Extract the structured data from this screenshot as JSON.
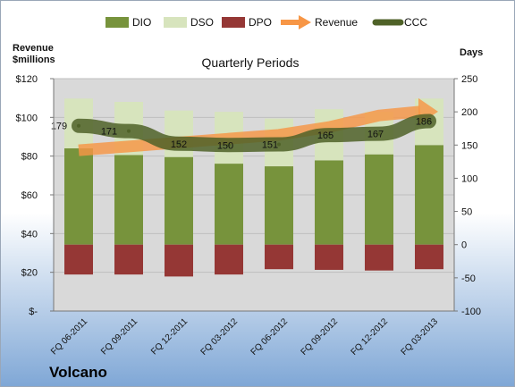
{
  "colors": {
    "dio": "#77933c",
    "dso": "#d7e4bd",
    "dpo": "#953735",
    "revenue": "#f79646",
    "ccc": "#4f6228",
    "plot_bg": "#d9d9d9",
    "bg_top": "#ffffff",
    "bg_bottom": "#7fa7d6"
  },
  "chart_data": {
    "type": "bar",
    "title": "Quarterly Periods",
    "company": "Volcano",
    "left_axis": {
      "label_line1": "Revenue",
      "label_line2": "$millions",
      "range": [
        0,
        120
      ],
      "ticks": [
        0,
        20,
        40,
        60,
        80,
        100,
        120
      ],
      "tick_labels": [
        "$-",
        "$20",
        "$40",
        "$60",
        "$80",
        "$100",
        "$120"
      ]
    },
    "right_axis": {
      "label": "Days",
      "range": [
        -100,
        250
      ],
      "ticks": [
        -100,
        -50,
        0,
        50,
        100,
        150,
        200,
        250
      ],
      "tick_labels": [
        "-100",
        "-50",
        "0",
        "50",
        "100",
        "150",
        "200",
        "250"
      ]
    },
    "grid": true,
    "legend_position": "top",
    "legend": [
      {
        "key": "dio",
        "label": "DIO",
        "marker": "bar"
      },
      {
        "key": "dso",
        "label": "DSO",
        "marker": "bar"
      },
      {
        "key": "dpo",
        "label": "DPO",
        "marker": "bar"
      },
      {
        "key": "revenue",
        "label": "Revenue",
        "marker": "arrow"
      },
      {
        "key": "ccc",
        "label": "CCC",
        "marker": "line"
      }
    ],
    "categories": [
      "FQ 06-2011",
      "FQ 09-2011",
      "FQ 12-2011",
      "FQ 03-2012",
      "FQ 06-2012",
      "FQ 09-2012",
      "FQ 12-2012",
      "FQ 03-2013"
    ],
    "series": [
      {
        "key": "dio",
        "name": "DIO",
        "axis": "right",
        "values": [
          145,
          135,
          132,
          122,
          118,
          127,
          136,
          150
        ]
      },
      {
        "key": "dso",
        "name": "DSO",
        "axis": "right",
        "values": [
          75,
          80,
          70,
          78,
          72,
          77,
          64,
          70
        ]
      },
      {
        "key": "dpo",
        "name": "DPO",
        "axis": "right",
        "values": [
          -45,
          -45,
          -48,
          -45,
          -37,
          -38,
          -39,
          -37
        ]
      },
      {
        "key": "revenue",
        "name": "Revenue",
        "axis": "left",
        "values": [
          83,
          85,
          87,
          89,
          91,
          95,
          101,
          103
        ]
      },
      {
        "key": "ccc",
        "name": "CCC",
        "axis": "right",
        "values": [
          179,
          171,
          152,
          150,
          151,
          165,
          167,
          186
        ]
      }
    ],
    "data_labels": [
      "179",
      "171",
      "152",
      "150",
      "151",
      "165",
      "167",
      "186"
    ]
  }
}
